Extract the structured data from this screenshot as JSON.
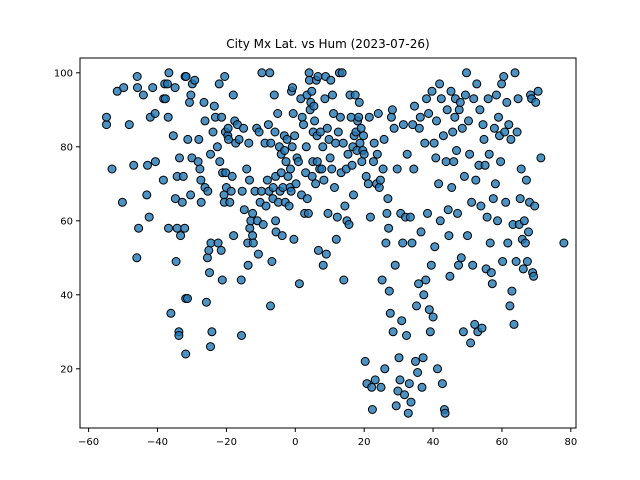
{
  "chart_data": {
    "type": "scatter",
    "title": "City Mx Lat. vs Hum (2023-07-26)",
    "xlabel": "",
    "ylabel": "",
    "xlim": [
      -62.5,
      81.5
    ],
    "ylim": [
      4,
      104
    ],
    "xticks": [
      -60,
      -40,
      -20,
      0,
      20,
      40,
      60,
      80
    ],
    "yticks": [
      20,
      40,
      60,
      80,
      100
    ],
    "grid": false,
    "marker_color": "#1f77b4",
    "marker_edge_color": "#000000",
    "marker_alpha": 0.8,
    "points": [
      [
        -54.8,
        86
      ],
      [
        -54.8,
        88
      ],
      [
        -53.2,
        74
      ],
      [
        -51.7,
        95
      ],
      [
        -50.2,
        65
      ],
      [
        -49.8,
        96
      ],
      [
        -48.2,
        86
      ],
      [
        -46.9,
        75
      ],
      [
        -46.0,
        50
      ],
      [
        -45.9,
        99
      ],
      [
        -45.5,
        58
      ],
      [
        -45.8,
        96
      ],
      [
        -44.1,
        94
      ],
      [
        -43.1,
        67
      ],
      [
        -42.9,
        75
      ],
      [
        -42.4,
        61
      ],
      [
        -42.1,
        88
      ],
      [
        -41.4,
        96
      ],
      [
        -40.7,
        89
      ],
      [
        -40.6,
        76
      ],
      [
        -38.3,
        71
      ],
      [
        -38.2,
        93
      ],
      [
        -37.9,
        97
      ],
      [
        -37.1,
        97
      ],
      [
        -37.7,
        93
      ],
      [
        -36.8,
        58
      ],
      [
        -36.9,
        88
      ],
      [
        -36.7,
        100
      ],
      [
        -36.1,
        35
      ],
      [
        -35.4,
        83
      ],
      [
        -34.9,
        96
      ],
      [
        -34.8,
        66
      ],
      [
        -34.6,
        49
      ],
      [
        -34.3,
        72
      ],
      [
        -34.3,
        58
      ],
      [
        -33.8,
        30
      ],
      [
        -33.8,
        29
      ],
      [
        -33.6,
        77
      ],
      [
        -33.3,
        56
      ],
      [
        -32.8,
        65
      ],
      [
        -32.5,
        72
      ],
      [
        -32.1,
        58
      ],
      [
        -32.0,
        99
      ],
      [
        -31.8,
        39
      ],
      [
        -31.7,
        99
      ],
      [
        -31.8,
        24
      ],
      [
        -31.3,
        39
      ],
      [
        -31.2,
        82
      ],
      [
        -30.7,
        92
      ],
      [
        -30.3,
        94
      ],
      [
        -30.4,
        67
      ],
      [
        -30.0,
        77
      ],
      [
        -29.9,
        97
      ],
      [
        -29.2,
        98
      ],
      [
        -28.2,
        76
      ],
      [
        -28.0,
        82
      ],
      [
        -27.7,
        74
      ],
      [
        -27.4,
        71
      ],
      [
        -27.3,
        65
      ],
      [
        -26.5,
        92
      ],
      [
        -26.2,
        87
      ],
      [
        -26.2,
        69
      ],
      [
        -25.8,
        38
      ],
      [
        -25.5,
        50
      ],
      [
        -25.4,
        68
      ],
      [
        -25.1,
        52
      ],
      [
        -24.9,
        46
      ],
      [
        -24.6,
        78
      ],
      [
        -24.6,
        26
      ],
      [
        -24.5,
        54
      ],
      [
        -24.2,
        30
      ],
      [
        -23.9,
        84
      ],
      [
        -23.5,
        91
      ],
      [
        -23.2,
        88
      ],
      [
        -22.6,
        80
      ],
      [
        -22.4,
        54
      ],
      [
        -22.1,
        97
      ],
      [
        -21.9,
        76
      ],
      [
        -21.5,
        52
      ],
      [
        -21.4,
        88
      ],
      [
        -21.2,
        44
      ],
      [
        -21.1,
        73
      ],
      [
        -20.7,
        67
      ],
      [
        -20.6,
        65
      ],
      [
        -20.5,
        99
      ],
      [
        -20.3,
        84
      ],
      [
        -20.2,
        73
      ],
      [
        -20.0,
        69
      ],
      [
        -19.6,
        83
      ],
      [
        -19.4,
        82
      ],
      [
        -19.5,
        85
      ],
      [
        -19.0,
        65
      ],
      [
        -18.6,
        68
      ],
      [
        -18.3,
        72
      ],
      [
        -18.0,
        94
      ],
      [
        -17.9,
        56
      ],
      [
        -17.6,
        87
      ],
      [
        -17.3,
        81
      ],
      [
        -16.8,
        86
      ],
      [
        -16.3,
        82
      ],
      [
        -15.7,
        44
      ],
      [
        -15.6,
        29
      ],
      [
        -15.4,
        68
      ],
      [
        -15.0,
        85
      ],
      [
        -14.8,
        63
      ],
      [
        -14.1,
        74
      ],
      [
        -13.8,
        54
      ],
      [
        -13.7,
        48
      ],
      [
        -13.5,
        81
      ],
      [
        -13.3,
        71
      ],
      [
        -13.2,
        58
      ],
      [
        -12.9,
        60
      ],
      [
        -12.4,
        56
      ],
      [
        -12.4,
        62
      ],
      [
        -12.2,
        54
      ],
      [
        -11.7,
        68
      ],
      [
        -11.2,
        85
      ],
      [
        -11.0,
        60
      ],
      [
        -10.7,
        51
      ],
      [
        -10.5,
        84
      ],
      [
        -10.2,
        65
      ],
      [
        -9.8,
        68
      ],
      [
        -9.7,
        100
      ],
      [
        -9.3,
        59
      ],
      [
        -8.8,
        81
      ],
      [
        -8.5,
        64
      ],
      [
        -8.1,
        71
      ],
      [
        -7.8,
        86
      ],
      [
        -7.6,
        68
      ],
      [
        -7.4,
        100
      ],
      [
        -7.2,
        37
      ],
      [
        -7.1,
        81
      ],
      [
        -6.8,
        49
      ],
      [
        -6.5,
        66
      ],
      [
        -6.4,
        69
      ],
      [
        -6.1,
        94
      ],
      [
        -5.9,
        84
      ],
      [
        -5.7,
        60
      ],
      [
        -5.7,
        72
      ],
      [
        -5.6,
        57
      ],
      [
        -5.1,
        89
      ],
      [
        -4.9,
        65
      ],
      [
        -4.6,
        80
      ],
      [
        -4.4,
        68
      ],
      [
        -4.1,
        78
      ],
      [
        -4.1,
        73
      ],
      [
        -3.8,
        56
      ],
      [
        -3.6,
        69
      ],
      [
        -3.2,
        83
      ],
      [
        -3.1,
        79
      ],
      [
        -2.9,
        65
      ],
      [
        -2.7,
        76
      ],
      [
        -2.4,
        82
      ],
      [
        -2.1,
        72
      ],
      [
        -1.8,
        64
      ],
      [
        -1.5,
        69
      ],
      [
        -1.4,
        74
      ],
      [
        -1.2,
        68
      ],
      [
        -1.1,
        95
      ],
      [
        -0.9,
        80
      ],
      [
        -0.8,
        96
      ],
      [
        -0.6,
        89
      ],
      [
        -0.4,
        55
      ],
      [
        -0.2,
        83
      ],
      [
        0.2,
        70
      ],
      [
        0.5,
        77
      ],
      [
        0.9,
        76
      ],
      [
        1.2,
        43
      ],
      [
        1.6,
        93
      ],
      [
        1.8,
        67
      ],
      [
        2.0,
        88
      ],
      [
        2.4,
        86
      ],
      [
        2.7,
        62
      ],
      [
        3.0,
        73
      ],
      [
        3.2,
        80
      ],
      [
        3.4,
        94
      ],
      [
        3.5,
        66
      ],
      [
        3.8,
        62
      ],
      [
        4.0,
        100
      ],
      [
        4.1,
        98
      ],
      [
        4.3,
        90
      ],
      [
        4.5,
        92
      ],
      [
        4.8,
        95
      ],
      [
        4.9,
        72
      ],
      [
        5.1,
        76
      ],
      [
        5.2,
        84
      ],
      [
        5.4,
        91
      ],
      [
        5.6,
        87
      ],
      [
        5.9,
        70
      ],
      [
        6.1,
        98
      ],
      [
        6.3,
        83
      ],
      [
        6.4,
        76
      ],
      [
        6.6,
        99
      ],
      [
        6.7,
        52
      ],
      [
        7.1,
        74
      ],
      [
        7.3,
        84
      ],
      [
        7.7,
        74
      ],
      [
        8.0,
        80
      ],
      [
        8.1,
        48
      ],
      [
        8.3,
        71
      ],
      [
        8.6,
        93
      ],
      [
        8.8,
        99
      ],
      [
        9.0,
        51
      ],
      [
        9.3,
        85
      ],
      [
        9.5,
        62
      ],
      [
        9.8,
        82
      ],
      [
        10.1,
        77
      ],
      [
        10.3,
        98
      ],
      [
        10.6,
        74
      ],
      [
        10.8,
        94
      ],
      [
        11.1,
        89
      ],
      [
        11.4,
        69
      ],
      [
        11.7,
        81
      ],
      [
        11.9,
        55
      ],
      [
        12.2,
        61
      ],
      [
        12.5,
        84
      ],
      [
        12.8,
        100
      ],
      [
        13.1,
        88
      ],
      [
        13.3,
        73
      ],
      [
        13.6,
        100
      ],
      [
        13.9,
        81
      ],
      [
        14.1,
        44
      ],
      [
        14.4,
        64
      ],
      [
        14.8,
        74
      ],
      [
        15.0,
        60
      ],
      [
        15.3,
        78
      ],
      [
        15.6,
        59
      ],
      [
        15.9,
        94
      ],
      [
        16.2,
        88
      ],
      [
        16.5,
        75
      ],
      [
        16.7,
        80
      ],
      [
        16.9,
        67
      ],
      [
        17.1,
        83
      ],
      [
        17.4,
        94
      ],
      [
        17.6,
        84
      ],
      [
        17.9,
        79
      ],
      [
        18.1,
        87
      ],
      [
        18.4,
        88
      ],
      [
        18.6,
        92
      ],
      [
        18.8,
        81
      ],
      [
        19.1,
        85
      ],
      [
        19.3,
        76
      ],
      [
        19.6,
        79
      ],
      [
        19.8,
        83
      ],
      [
        20.0,
        78
      ],
      [
        20.3,
        22
      ],
      [
        20.6,
        72
      ],
      [
        20.8,
        16
      ],
      [
        21.2,
        70
      ],
      [
        21.5,
        88
      ],
      [
        21.8,
        61
      ],
      [
        22.2,
        15
      ],
      [
        22.4,
        9
      ],
      [
        22.7,
        76
      ],
      [
        22.9,
        81
      ],
      [
        23.2,
        17
      ],
      [
        23.6,
        70
      ],
      [
        23.8,
        78
      ],
      [
        24.1,
        89
      ],
      [
        24.4,
        69
      ],
      [
        24.7,
        71
      ],
      [
        24.9,
        15
      ],
      [
        25.2,
        44
      ],
      [
        25.5,
        74
      ],
      [
        25.8,
        82
      ],
      [
        26.0,
        20
      ],
      [
        26.3,
        54
      ],
      [
        26.6,
        62
      ],
      [
        26.9,
        66
      ],
      [
        27.1,
        58
      ],
      [
        27.3,
        41
      ],
      [
        27.6,
        35
      ],
      [
        27.9,
        88
      ],
      [
        28.2,
        90
      ],
      [
        28.4,
        30
      ],
      [
        28.7,
        85
      ],
      [
        29.0,
        48
      ],
      [
        29.3,
        10
      ],
      [
        29.6,
        74
      ],
      [
        29.8,
        14
      ],
      [
        30.1,
        23
      ],
      [
        30.4,
        17
      ],
      [
        30.6,
        62
      ],
      [
        30.9,
        33
      ],
      [
        31.2,
        54
      ],
      [
        31.4,
        86
      ],
      [
        31.7,
        13
      ],
      [
        32.0,
        61
      ],
      [
        32.3,
        29
      ],
      [
        32.5,
        78
      ],
      [
        32.8,
        8
      ],
      [
        33.1,
        16
      ],
      [
        33.4,
        61
      ],
      [
        33.6,
        11
      ],
      [
        33.9,
        54
      ],
      [
        34.1,
        86
      ],
      [
        34.4,
        74
      ],
      [
        34.6,
        91
      ],
      [
        34.9,
        22
      ],
      [
        35.2,
        37
      ],
      [
        35.5,
        19
      ],
      [
        35.8,
        43
      ],
      [
        36.0,
        85
      ],
      [
        36.3,
        88
      ],
      [
        36.5,
        57
      ],
      [
        36.8,
        15
      ],
      [
        37.1,
        23
      ],
      [
        37.3,
        40
      ],
      [
        37.6,
        81
      ],
      [
        37.9,
        44
      ],
      [
        38.1,
        93
      ],
      [
        38.4,
        62
      ],
      [
        38.7,
        89
      ],
      [
        38.9,
        36
      ],
      [
        39.2,
        30
      ],
      [
        39.5,
        48
      ],
      [
        39.7,
        95
      ],
      [
        40.0,
        34
      ],
      [
        40.3,
        81
      ],
      [
        40.5,
        53
      ],
      [
        40.8,
        77
      ],
      [
        41.0,
        87
      ],
      [
        41.3,
        20
      ],
      [
        41.6,
        70
      ],
      [
        41.9,
        97
      ],
      [
        42.1,
        60
      ],
      [
        42.4,
        93
      ],
      [
        42.7,
        16
      ],
      [
        43.0,
        83
      ],
      [
        43.3,
        9
      ],
      [
        43.5,
        8
      ],
      [
        43.8,
        76
      ],
      [
        44.1,
        90
      ],
      [
        44.4,
        63
      ],
      [
        44.6,
        56
      ],
      [
        44.9,
        45
      ],
      [
        45.2,
        95
      ],
      [
        45.4,
        69
      ],
      [
        45.7,
        84
      ],
      [
        46.0,
        76
      ],
      [
        46.3,
        88
      ],
      [
        46.5,
        93
      ],
      [
        46.8,
        79
      ],
      [
        47.1,
        62
      ],
      [
        47.4,
        48
      ],
      [
        47.6,
        90
      ],
      [
        47.9,
        92
      ],
      [
        48.2,
        50
      ],
      [
        48.5,
        85
      ],
      [
        48.8,
        30
      ],
      [
        49.1,
        72
      ],
      [
        49.4,
        94
      ],
      [
        49.7,
        100
      ],
      [
        50.0,
        56
      ],
      [
        50.3,
        87
      ],
      [
        50.6,
        78
      ],
      [
        50.9,
        27
      ],
      [
        51.2,
        65
      ],
      [
        51.5,
        48
      ],
      [
        51.8,
        93
      ],
      [
        52.1,
        32
      ],
      [
        52.4,
        71
      ],
      [
        52.7,
        97
      ],
      [
        53.0,
        30
      ],
      [
        53.3,
        75
      ],
      [
        53.6,
        90
      ],
      [
        53.9,
        64
      ],
      [
        54.2,
        31
      ],
      [
        54.5,
        86
      ],
      [
        54.8,
        82
      ],
      [
        55.1,
        75
      ],
      [
        55.4,
        47
      ],
      [
        55.7,
        61
      ],
      [
        56.0,
        93
      ],
      [
        56.3,
        78
      ],
      [
        56.6,
        54
      ],
      [
        56.9,
        46
      ],
      [
        57.2,
        43
      ],
      [
        57.5,
        66
      ],
      [
        57.8,
        85
      ],
      [
        58.1,
        70
      ],
      [
        58.4,
        94
      ],
      [
        58.7,
        60
      ],
      [
        59.0,
        88
      ],
      [
        59.3,
        83
      ],
      [
        59.6,
        76
      ],
      [
        59.9,
        97
      ],
      [
        60.2,
        49
      ],
      [
        60.5,
        99
      ],
      [
        60.8,
        84
      ],
      [
        61.1,
        65
      ],
      [
        61.4,
        92
      ],
      [
        61.7,
        54
      ],
      [
        62.0,
        86
      ],
      [
        62.3,
        37
      ],
      [
        62.6,
        82
      ],
      [
        62.9,
        41
      ],
      [
        63.2,
        59
      ],
      [
        63.5,
        32
      ],
      [
        63.8,
        100
      ],
      [
        64.1,
        49
      ],
      [
        64.4,
        84
      ],
      [
        64.7,
        93
      ],
      [
        65.0,
        59
      ],
      [
        65.3,
        66
      ],
      [
        65.6,
        74
      ],
      [
        65.9,
        55
      ],
      [
        66.2,
        47
      ],
      [
        66.5,
        60
      ],
      [
        66.8,
        54
      ],
      [
        67.1,
        71
      ],
      [
        67.4,
        49
      ],
      [
        67.7,
        57
      ],
      [
        68.0,
        65
      ],
      [
        68.3,
        94
      ],
      [
        68.6,
        93
      ],
      [
        68.9,
        46
      ],
      [
        69.2,
        45
      ],
      [
        69.5,
        64
      ],
      [
        69.8,
        92
      ],
      [
        70.5,
        95
      ],
      [
        71.3,
        77
      ],
      [
        78.0,
        54
      ]
    ]
  }
}
